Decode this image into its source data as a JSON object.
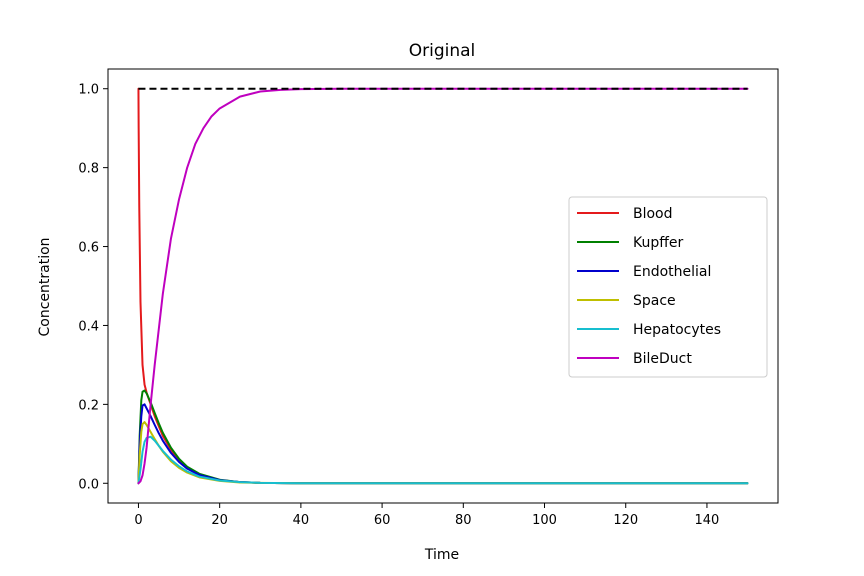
{
  "chart_data": {
    "type": "line",
    "title": "Original",
    "xlabel": "Time",
    "ylabel": "Concentration",
    "xlim": [
      -7.5,
      157.5
    ],
    "ylim": [
      -0.05,
      1.05
    ],
    "xticks": [
      0,
      20,
      40,
      60,
      80,
      100,
      120,
      140
    ],
    "yticks": [
      0.0,
      0.2,
      0.4,
      0.6,
      0.8,
      1.0
    ],
    "xtick_labels": [
      "0",
      "20",
      "40",
      "60",
      "80",
      "100",
      "120",
      "140"
    ],
    "ytick_labels": [
      "0.0",
      "0.2",
      "0.4",
      "0.6",
      "0.8",
      "1.0"
    ],
    "grid": false,
    "legend_position": "center-right",
    "reference_line": {
      "y": 1.0,
      "x": [
        0,
        150
      ],
      "color": "#000000",
      "style": "dashed"
    },
    "series": [
      {
        "name": "Blood",
        "color": "#e41a1c",
        "x": [
          0,
          0.05,
          0.2,
          0.5,
          1,
          1.5,
          2,
          3,
          4,
          5,
          6,
          8,
          10,
          12,
          15,
          20,
          25,
          30,
          40,
          150
        ],
        "y": [
          1.0,
          0.9,
          0.7,
          0.46,
          0.3,
          0.25,
          0.23,
          0.2,
          0.17,
          0.145,
          0.12,
          0.085,
          0.058,
          0.04,
          0.022,
          0.008,
          0.003,
          0.001,
          0.0,
          0.0
        ]
      },
      {
        "name": "Kupffer",
        "color": "#008000",
        "x": [
          0,
          0.3,
          0.7,
          1,
          1.5,
          2,
          3,
          4,
          5,
          6,
          8,
          10,
          12,
          15,
          20,
          25,
          30,
          40,
          150
        ],
        "y": [
          0.0,
          0.12,
          0.21,
          0.232,
          0.235,
          0.228,
          0.205,
          0.178,
          0.152,
          0.128,
          0.09,
          0.062,
          0.042,
          0.024,
          0.009,
          0.003,
          0.001,
          0.0,
          0.0
        ]
      },
      {
        "name": "Endothelial",
        "color": "#0000cc",
        "x": [
          0,
          0.3,
          0.7,
          1,
          1.5,
          2,
          3,
          4,
          5,
          6,
          8,
          10,
          12,
          15,
          20,
          25,
          30,
          40,
          150
        ],
        "y": [
          0.0,
          0.1,
          0.17,
          0.197,
          0.2,
          0.19,
          0.17,
          0.148,
          0.127,
          0.108,
          0.077,
          0.054,
          0.037,
          0.021,
          0.008,
          0.003,
          0.001,
          0.0,
          0.0
        ]
      },
      {
        "name": "Space",
        "color": "#bfbf00",
        "x": [
          0,
          0.3,
          0.7,
          1,
          1.5,
          2,
          3,
          4,
          5,
          6,
          8,
          10,
          12,
          15,
          20,
          25,
          30,
          40,
          150
        ],
        "y": [
          0.0,
          0.07,
          0.13,
          0.15,
          0.155,
          0.148,
          0.13,
          0.112,
          0.095,
          0.08,
          0.056,
          0.039,
          0.027,
          0.015,
          0.006,
          0.002,
          0.001,
          0.0,
          0.0
        ]
      },
      {
        "name": "Hepatocytes",
        "color": "#17becf",
        "x": [
          0,
          0.5,
          1,
          1.5,
          2,
          3,
          4,
          5,
          6,
          8,
          10,
          12,
          15,
          20,
          25,
          30,
          40,
          150
        ],
        "y": [
          0.0,
          0.035,
          0.08,
          0.105,
          0.115,
          0.118,
          0.108,
          0.095,
          0.082,
          0.06,
          0.043,
          0.03,
          0.017,
          0.007,
          0.003,
          0.001,
          0.0,
          0.0
        ]
      },
      {
        "name": "BileDuct",
        "color": "#bf00bf",
        "x": [
          0,
          0.5,
          1,
          1.5,
          2,
          3,
          4,
          5,
          6,
          7,
          8,
          10,
          12,
          14,
          16,
          18,
          20,
          25,
          30,
          35,
          40,
          50,
          60,
          150
        ],
        "y": [
          0.0,
          0.005,
          0.02,
          0.05,
          0.09,
          0.2,
          0.3,
          0.39,
          0.48,
          0.55,
          0.62,
          0.72,
          0.8,
          0.86,
          0.9,
          0.93,
          0.95,
          0.98,
          0.993,
          0.997,
          0.999,
          1.0,
          1.0,
          1.0
        ]
      }
    ]
  }
}
